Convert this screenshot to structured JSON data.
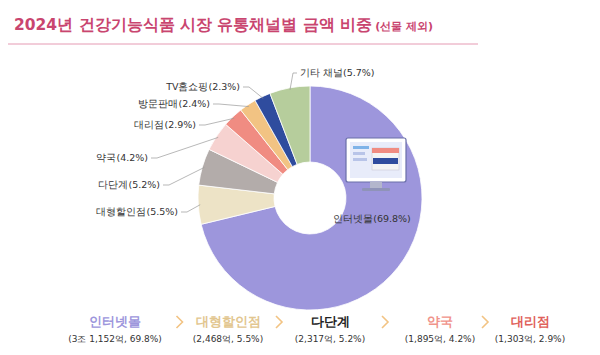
{
  "chart_data": {
    "type": "pie",
    "title": "2024년 건강기능식품 시장 유통채널별 금액 비중",
    "subtitle": "(선물 제외)",
    "categories": [
      "인터넷몰",
      "대형할인점",
      "다단계",
      "약국",
      "대리점",
      "방문판매",
      "TV홈쇼핑",
      "기타 채널"
    ],
    "values": [
      69.8,
      5.5,
      5.2,
      4.2,
      2.9,
      2.4,
      2.3,
      5.7
    ],
    "value_labels": [
      "인터넷몰(69.8%)",
      "대형할인점(5.5%)",
      "다단계(5.2%)",
      "약국(4.2%)",
      "대리점(2.9%)",
      "방문판매(2.4%)",
      "TV홈쇼핑(2.3%)",
      "기타 채널(5.7%)"
    ],
    "colors": [
      "#9d96dc",
      "#ede3c6",
      "#b3acaa",
      "#f6d2d0",
      "#f08c82",
      "#f2c383",
      "#2f4c9e",
      "#b6cd9c"
    ],
    "data_labels": true,
    "annotations": [
      {
        "label": "인터넷몰",
        "text": "(3조 1,152억, 69.8%)",
        "color": "#9d96dc"
      },
      {
        "label": "대형할인점",
        "text": "(2,468억, 5.5%)",
        "color": "#e2c68f"
      },
      {
        "label": "다단계",
        "text": "(2,317억, 5.2%)",
        "color": "#222222"
      },
      {
        "label": "약국",
        "text": "(1,895억, 4.2%)",
        "color": "#f0938a"
      },
      {
        "label": "대리점",
        "text": "(1,303억, 2.9%)",
        "color": "#e0605a"
      }
    ]
  }
}
